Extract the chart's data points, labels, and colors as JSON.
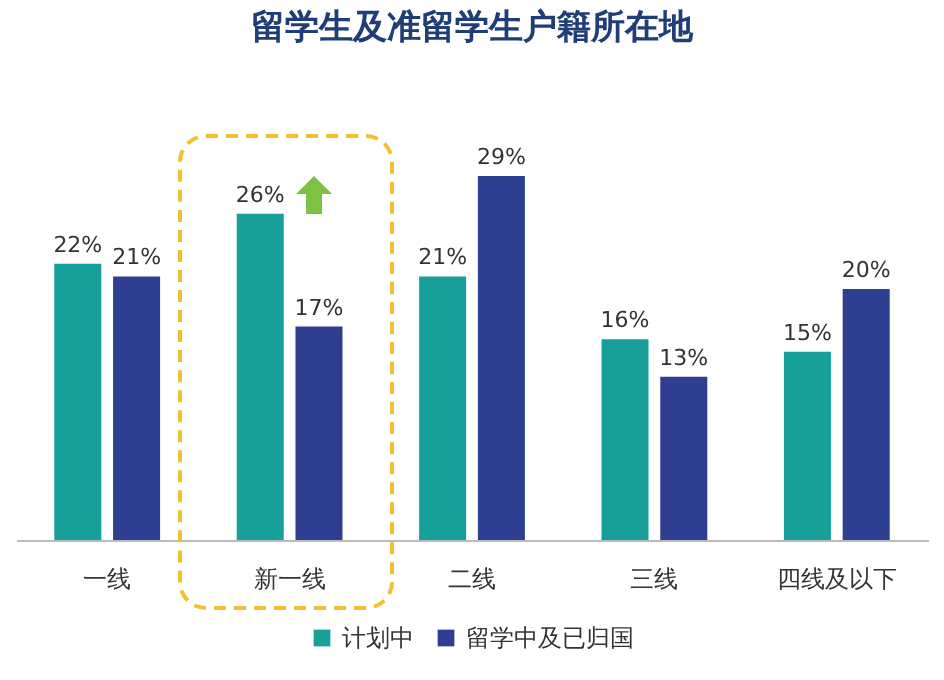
{
  "chart_data": {
    "type": "bar",
    "title": "留学生及准留学生户籍所在地",
    "categories": [
      "一线",
      "新一线",
      "二线",
      "三线",
      "四线及以下"
    ],
    "series": [
      {
        "name": "计划中",
        "color": "#17a09a",
        "values": [
          22,
          26,
          21,
          16,
          15
        ],
        "value_labels": [
          "22%",
          "26%",
          "21%",
          "16%",
          "15%"
        ]
      },
      {
        "name": "留学中及已归国",
        "color": "#2e3f92",
        "values": [
          21,
          17,
          29,
          13,
          20
        ],
        "value_labels": [
          "21%",
          "17%",
          "29%",
          "13%",
          "20%"
        ]
      }
    ],
    "legend": "bottom"
  }
}
